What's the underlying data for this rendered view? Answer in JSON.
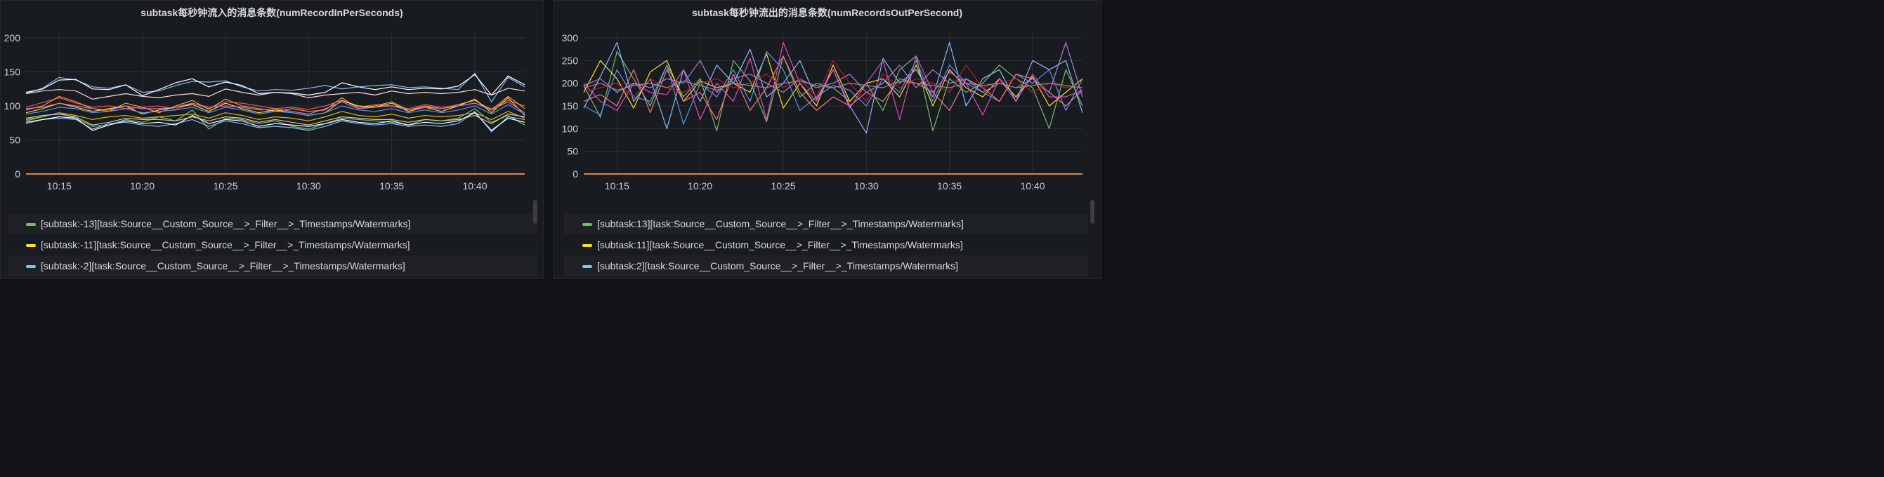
{
  "chart_data": [
    {
      "type": "line",
      "title": "subtask每秒钟流入的消息条数(numRecordInPerSeconds)",
      "xlabel": "",
      "ylabel": "",
      "ylim": [
        0,
        200
      ],
      "yticks": [
        0,
        50,
        100,
        150,
        200
      ],
      "ytick_labels": [
        "0",
        "50",
        "100",
        "150",
        "200"
      ],
      "xlim": [
        "10:13",
        "10:43"
      ],
      "xticks": [
        "10:15",
        "10:20",
        "10:25",
        "10:30",
        "10:35",
        "10:40"
      ],
      "grid": true,
      "legend_position": "bottom",
      "legend": [
        {
          "label": "[subtask:-13][task:Source__Custom_Source__>_Filter__>_Timestamps/Watermarks]",
          "color": "#73bf69"
        },
        {
          "label": "[subtask:-11][task:Source__Custom_Source__>_Filter__>_Timestamps/Watermarks]",
          "color": "#fade2a"
        },
        {
          "label": "[subtask:-2][task:Source__Custom_Source__>_Filter__>_Timestamps/Watermarks]",
          "color": "#8ab8ff"
        }
      ],
      "x": [
        "10:13",
        "10:14",
        "10:15",
        "10:16",
        "10:17",
        "10:18",
        "10:19",
        "10:20",
        "10:21",
        "10:22",
        "10:23",
        "10:24",
        "10:25",
        "10:26",
        "10:27",
        "10:28",
        "10:29",
        "10:30",
        "10:31",
        "10:32",
        "10:33",
        "10:34",
        "10:35",
        "10:36",
        "10:37",
        "10:38",
        "10:39",
        "10:40",
        "10:41",
        "10:42",
        "10:43"
      ],
      "series": [
        {
          "color": "#8ab8ff",
          "values": [
            118,
            126,
            142,
            138,
            128,
            126,
            131,
            120,
            122,
            130,
            136,
            135,
            137,
            128,
            122,
            124,
            123,
            126,
            130,
            125,
            128,
            130,
            131,
            127,
            128,
            126,
            124,
            148,
            106,
            142,
            128
          ]
        },
        {
          "color": "#ffffff",
          "values": [
            120,
            125,
            138,
            139,
            125,
            124,
            131,
            115,
            124,
            134,
            140,
            128,
            135,
            130,
            118,
            120,
            119,
            116,
            120,
            134,
            128,
            124,
            128,
            124,
            126,
            125,
            129,
            146,
            116,
            144,
            131
          ]
        },
        {
          "color": "#f9d9d9",
          "values": [
            118,
            122,
            124,
            122,
            110,
            114,
            118,
            114,
            112,
            116,
            118,
            114,
            125,
            120,
            116,
            120,
            118,
            112,
            116,
            118,
            120,
            116,
            122,
            118,
            120,
            118,
            120,
            124,
            116,
            126,
            122
          ]
        },
        {
          "color": "#f2495c",
          "values": [
            98,
            105,
            112,
            104,
            98,
            100,
            96,
            98,
            100,
            95,
            104,
            96,
            106,
            104,
            100,
            96,
            98,
            95,
            100,
            108,
            98,
            102,
            100,
            96,
            102,
            98,
            100,
            104,
            96,
            108,
            100
          ]
        },
        {
          "color": "#ff9830",
          "values": [
            94,
            100,
            114,
            106,
            96,
            92,
            104,
            98,
            90,
            100,
            108,
            95,
            110,
            100,
            96,
            92,
            96,
            92,
            94,
            112,
            96,
            100,
            106,
            94,
            100,
            96,
            102,
            108,
            94,
            114,
            96
          ]
        },
        {
          "color": "#fade2a",
          "values": [
            90,
            96,
            104,
            98,
            92,
            96,
            100,
            88,
            94,
            98,
            102,
            92,
            104,
            96,
            90,
            94,
            90,
            86,
            90,
            108,
            100,
            98,
            104,
            92,
            98,
            92,
            100,
            110,
            90,
            112,
            86
          ]
        },
        {
          "color": "#b877d9",
          "values": [
            96,
            98,
            104,
            100,
            96,
            94,
            100,
            96,
            96,
            98,
            104,
            98,
            100,
            98,
            94,
            96,
            92,
            88,
            96,
            106,
            96,
            98,
            100,
            94,
            98,
            96,
            100,
            104,
            94,
            106,
            90
          ]
        },
        {
          "color": "#5794f2",
          "values": [
            88,
            92,
            98,
            96,
            90,
            92,
            96,
            90,
            92,
            94,
            98,
            90,
            98,
            94,
            88,
            92,
            90,
            86,
            90,
            100,
            94,
            92,
            96,
            90,
            94,
            90,
            94,
            100,
            88,
            102,
            88
          ]
        },
        {
          "color": "#e0b400",
          "values": [
            80,
            84,
            90,
            86,
            80,
            84,
            86,
            82,
            84,
            86,
            88,
            82,
            90,
            86,
            80,
            84,
            82,
            78,
            84,
            92,
            86,
            84,
            88,
            82,
            86,
            84,
            86,
            90,
            80,
            92,
            82
          ]
        },
        {
          "color": "#73bf69",
          "values": [
            78,
            84,
            90,
            82,
            70,
            72,
            80,
            76,
            84,
            78,
            94,
            66,
            82,
            80,
            74,
            78,
            70,
            66,
            74,
            82,
            80,
            78,
            76,
            72,
            80,
            78,
            82,
            96,
            76,
            86,
            72
          ]
        },
        {
          "color": "#8ab8ff",
          "values": [
            74,
            80,
            82,
            80,
            66,
            74,
            76,
            72,
            70,
            74,
            80,
            70,
            78,
            74,
            68,
            70,
            68,
            64,
            70,
            78,
            74,
            72,
            74,
            70,
            72,
            70,
            74,
            92,
            62,
            84,
            80
          ]
        },
        {
          "color": "#ffffff",
          "values": [
            76,
            80,
            84,
            82,
            64,
            72,
            78,
            74,
            76,
            72,
            86,
            74,
            80,
            78,
            70,
            74,
            72,
            70,
            74,
            80,
            76,
            74,
            78,
            72,
            76,
            74,
            78,
            90,
            64,
            82,
            76
          ]
        },
        {
          "color": "#c4c4c4",
          "values": [
            82,
            86,
            88,
            84,
            72,
            76,
            82,
            80,
            80,
            78,
            84,
            78,
            84,
            82,
            76,
            80,
            76,
            72,
            78,
            84,
            82,
            80,
            80,
            76,
            80,
            78,
            80,
            86,
            74,
            88,
            84
          ]
        }
      ],
      "zero_series": [
        {
          "color": "#b877d9",
          "value": 0
        },
        {
          "color": "#ff9830",
          "value": 0
        }
      ]
    },
    {
      "type": "line",
      "title": "subtask每秒钟流出的消息条数(numRecordsOutPerSecond)",
      "xlabel": "",
      "ylabel": "",
      "ylim": [
        0,
        300
      ],
      "yticks": [
        0,
        50,
        100,
        150,
        200,
        250,
        300
      ],
      "ytick_labels": [
        "0",
        "50",
        "100",
        "150",
        "200",
        "250",
        "300"
      ],
      "xlim": [
        "10:13",
        "10:43"
      ],
      "xticks": [
        "10:15",
        "10:20",
        "10:25",
        "10:30",
        "10:35",
        "10:40"
      ],
      "grid": true,
      "legend_position": "bottom",
      "legend": [
        {
          "label": "[subtask:13][task:Source__Custom_Source__>_Filter__>_Timestamps/Watermarks]",
          "color": "#73bf69"
        },
        {
          "label": "[subtask:11][task:Source__Custom_Source__>_Filter__>_Timestamps/Watermarks]",
          "color": "#fade2a"
        },
        {
          "label": "[subtask:2][task:Source__Custom_Source__>_Filter__>_Timestamps/Watermarks]",
          "color": "#8ab8ff"
        }
      ],
      "x": [
        "10:13",
        "10:14",
        "10:15",
        "10:16",
        "10:17",
        "10:18",
        "10:19",
        "10:20",
        "10:21",
        "10:22",
        "10:23",
        "10:24",
        "10:25",
        "10:26",
        "10:27",
        "10:28",
        "10:29",
        "10:30",
        "10:31",
        "10:32",
        "10:33",
        "10:34",
        "10:35",
        "10:36",
        "10:37",
        "10:38",
        "10:39",
        "10:40",
        "10:41",
        "10:42",
        "10:43"
      ],
      "series": [
        {
          "color": "#73bf69",
          "values": [
            195,
            125,
            270,
            210,
            150,
            240,
            170,
            210,
            95,
            250,
            205,
            115,
            260,
            170,
            200,
            190,
            160,
            200,
            140,
            230,
            260,
            95,
            210,
            180,
            200,
            240,
            210,
            190,
            100,
            230,
            150
          ]
        },
        {
          "color": "#fade2a",
          "values": [
            180,
            250,
            210,
            145,
            225,
            250,
            160,
            205,
            190,
            200,
            180,
            265,
            145,
            200,
            150,
            240,
            160,
            200,
            210,
            170,
            240,
            150,
            230,
            190,
            170,
            210,
            170,
            215,
            150,
            180,
            210
          ]
        },
        {
          "color": "#8ab8ff",
          "values": [
            145,
            215,
            290,
            160,
            210,
            100,
            230,
            160,
            240,
            200,
            275,
            170,
            200,
            250,
            165,
            230,
            150,
            90,
            255,
            200,
            230,
            170,
            290,
            150,
            210,
            230,
            160,
            250,
            230,
            250,
            135
          ]
        },
        {
          "color": "#5794f2",
          "values": [
            150,
            130,
            230,
            170,
            160,
            240,
            110,
            200,
            170,
            230,
            160,
            270,
            230,
            140,
            170,
            195,
            185,
            150,
            210,
            180,
            250,
            160,
            240,
            200,
            180,
            160,
            220,
            200,
            230,
            140,
            210
          ]
        },
        {
          "color": "#ff7383",
          "values": [
            160,
            175,
            150,
            230,
            135,
            230,
            160,
            180,
            120,
            220,
            140,
            190,
            260,
            180,
            140,
            170,
            150,
            180,
            160,
            210,
            200,
            180,
            140,
            210,
            190,
            160,
            220,
            210,
            180,
            150,
            185
          ]
        },
        {
          "color": "#e34cbf",
          "values": [
            200,
            160,
            140,
            200,
            180,
            175,
            230,
            120,
            200,
            160,
            255,
            120,
            290,
            200,
            160,
            230,
            145,
            200,
            250,
            120,
            260,
            180,
            225,
            200,
            130,
            210,
            160,
            220,
            170,
            170,
            185
          ]
        },
        {
          "color": "#b877d9",
          "values": [
            195,
            210,
            180,
            200,
            190,
            210,
            200,
            250,
            180,
            210,
            220,
            200,
            180,
            210,
            190,
            200,
            220,
            180,
            200,
            240,
            190,
            230,
            200,
            210,
            180,
            200,
            190,
            210,
            180,
            290,
            170
          ]
        },
        {
          "color": "#c4162a",
          "values": [
            180,
            190,
            200,
            170,
            210,
            190,
            180,
            200,
            210,
            190,
            200,
            220,
            190,
            210,
            170,
            250,
            200,
            160,
            220,
            190,
            210,
            200,
            180,
            240,
            190,
            200,
            210,
            180,
            200,
            190,
            200
          ]
        },
        {
          "color": "#8f8f8f",
          "values": [
            190,
            200,
            185,
            195,
            200,
            190,
            205,
            195,
            185,
            200,
            195,
            190,
            200,
            205,
            195,
            190,
            200,
            195,
            190,
            205,
            200,
            195,
            190,
            200,
            195,
            200,
            190,
            195,
            200,
            195,
            190
          ]
        }
      ],
      "zero_series": [
        {
          "color": "#b877d9",
          "value": 0
        },
        {
          "color": "#ff9830",
          "value": 0
        }
      ]
    }
  ],
  "panels": {
    "left": {
      "title": "subtask每秒钟流入的消息条数(numRecordInPerSeconds)"
    },
    "right": {
      "title": "subtask每秒钟流出的消息条数(numRecordsOutPerSecond)"
    }
  },
  "legend_left": [
    "[subtask:-13][task:Source__Custom_Source__>_Filter__>_Timestamps/Watermarks]",
    "[subtask:-11][task:Source__Custom_Source__>_Filter__>_Timestamps/Watermarks]",
    "[subtask:-2][task:Source__Custom_Source__>_Filter__>_Timestamps/Watermarks]"
  ],
  "legend_right": [
    "[subtask:13][task:Source__Custom_Source__>_Filter__>_Timestamps/Watermarks]",
    "[subtask:11][task:Source__Custom_Source__>_Filter__>_Timestamps/Watermarks]",
    "[subtask:2][task:Source__Custom_Source__>_Filter__>_Timestamps/Watermarks]"
  ]
}
